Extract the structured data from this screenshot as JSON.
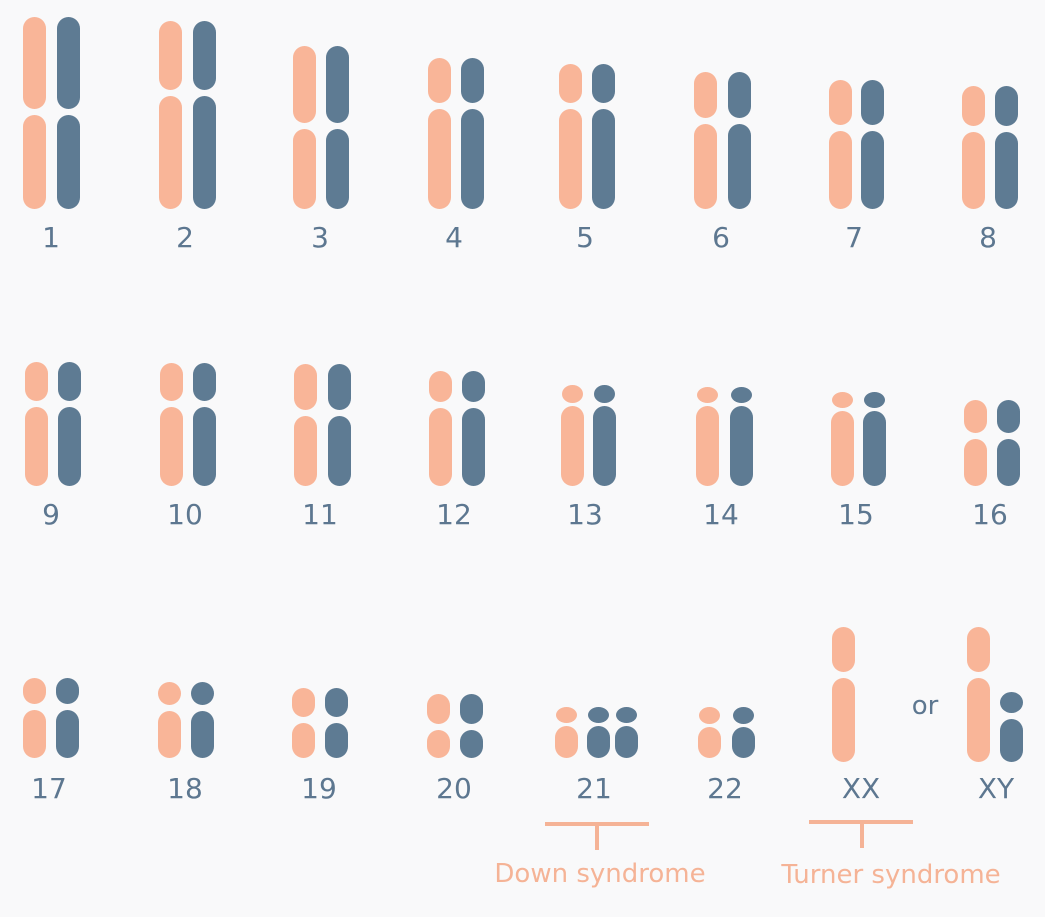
{
  "colors": {
    "maternal": "#f9b598",
    "paternal": "#5e7b93",
    "label": "#5d7790",
    "annotation": "#f5b396",
    "background": "#f9f9fa"
  },
  "chromosomes": [
    {
      "label": "1",
      "shape": "plain"
    },
    {
      "label": "2",
      "shape": "plain"
    },
    {
      "label": "3",
      "shape": "plain"
    },
    {
      "label": "4",
      "shape": "plain"
    },
    {
      "label": "5",
      "shape": "plain"
    },
    {
      "label": "6",
      "shape": "plain"
    },
    {
      "label": "7",
      "shape": "plain"
    },
    {
      "label": "8",
      "shape": "plain"
    },
    {
      "label": "9",
      "shape": "plain"
    },
    {
      "label": "10",
      "shape": "plain"
    },
    {
      "label": "11",
      "shape": "plain"
    },
    {
      "label": "12",
      "shape": "plain"
    },
    {
      "label": "13",
      "shape": "acrocentric"
    },
    {
      "label": "14",
      "shape": "acrocentric"
    },
    {
      "label": "15",
      "shape": "acrocentric"
    },
    {
      "label": "16",
      "shape": "plain"
    },
    {
      "label": "17",
      "shape": "plain"
    },
    {
      "label": "18",
      "shape": "plain"
    },
    {
      "label": "19",
      "shape": "plain"
    },
    {
      "label": "20",
      "shape": "plain"
    },
    {
      "label": "21",
      "shape": "acrocentric",
      "copies": 3
    },
    {
      "label": "22",
      "shape": "acrocentric"
    },
    {
      "label": "XX",
      "shape": "plain",
      "copies": 1
    },
    {
      "label": "XY",
      "shape": "plain",
      "copies": 2
    }
  ],
  "or_text": "or",
  "annotations": {
    "down": "Down syndrome",
    "turner": "Turner syndrome"
  }
}
